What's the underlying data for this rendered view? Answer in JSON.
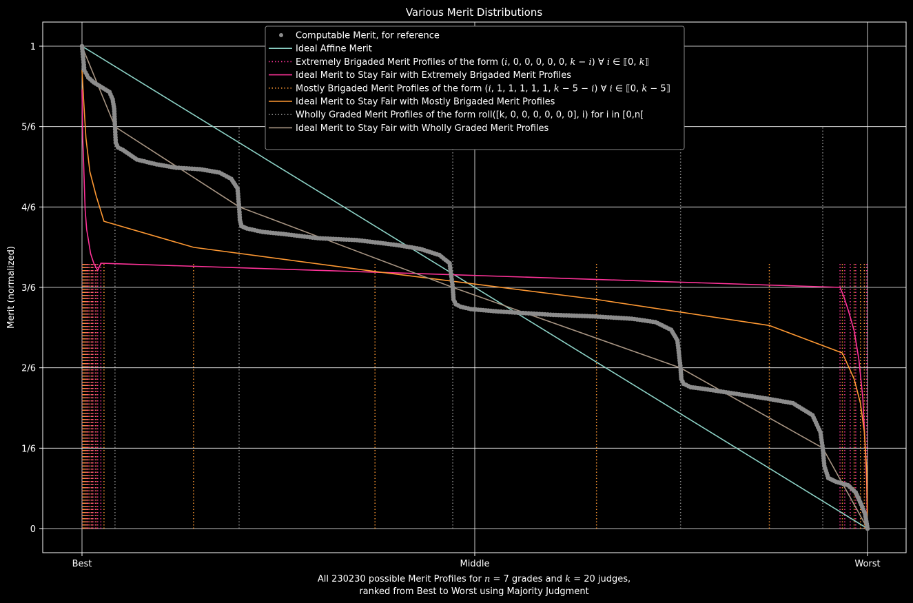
{
  "chart_data": {
    "type": "line",
    "title": "Various Merit Distributions",
    "xlabel": "All 230230 possible Merit Profiles for $n = 7$ grades and $k = 20$ judges,",
    "xlabel_line2": "ranked from Best to Worst using Majority Judgment",
    "ylabel": "Merit (normalized)",
    "xlim": [
      -0.05,
      1.05
    ],
    "ylim": [
      -0.05,
      1.05
    ],
    "x_ticks": [
      {
        "value": 0,
        "label": "Best"
      },
      {
        "value": 0.5,
        "label": "Middle"
      },
      {
        "value": 1,
        "label": "Worst"
      }
    ],
    "y_ticks": [
      {
        "value": 0,
        "label": "0"
      },
      {
        "value": 0.16667,
        "label": "1/6"
      },
      {
        "value": 0.33333,
        "label": "2/6"
      },
      {
        "value": 0.5,
        "label": "3/6"
      },
      {
        "value": 0.66667,
        "label": "4/6"
      },
      {
        "value": 0.83333,
        "label": "5/6"
      },
      {
        "value": 1,
        "label": "1"
      }
    ],
    "grid": true,
    "legend_position": "top-center",
    "legend": [
      {
        "label": "Computable Merit, for reference",
        "color": "#8c8c8c",
        "style": "dots"
      },
      {
        "label": "Ideal Affine Merit",
        "color": "#8dd3c7",
        "style": "solid"
      },
      {
        "label_parts": [
          "Extremely Brigaded Merit Profiles of the form (",
          "i",
          ", 0, 0, 0, 0, 0, ",
          "k",
          " − ",
          "i",
          ") ∀ ",
          "i",
          " ∈ ⟦0, ",
          "k",
          "⟧"
        ],
        "color": "#ff3399",
        "style": "dotted"
      },
      {
        "label": "Ideal Merit to Stay Fair with Extremely Brigaded Merit Profiles",
        "color": "#ff3399",
        "style": "solid"
      },
      {
        "label_parts": [
          "Mostly Brigaded Merit Profiles of the form (",
          "i",
          ", 1, 1, 1, 1, 1, ",
          "k",
          " − 5 − ",
          "i",
          ") ∀ ",
          "i",
          " ∈ ⟦0, ",
          "k",
          " − 5⟧"
        ],
        "color": "#ff9933",
        "style": "dotted"
      },
      {
        "label": "Ideal Merit to Stay Fair with Mostly Brigaded Merit Profiles",
        "color": "#ff9933",
        "style": "solid"
      },
      {
        "label": "Wholly Graded Merit Profiles of the form roll([k, 0, 0, 0, 0, 0, 0], i) for i in [0,n[",
        "color": "#8c8c8c",
        "style": "dotted"
      },
      {
        "label": "Ideal Merit to Stay Fair with Wholly Graded Merit Profiles",
        "color": "#a89583",
        "style": "solid"
      }
    ],
    "series": [
      {
        "name": "Ideal Affine Merit",
        "color": "#8dd3c7",
        "x": [
          0,
          1
        ],
        "y": [
          1,
          0
        ]
      },
      {
        "name": "Ideal Merit to Stay Fair with Extremely Brigaded Merit Profiles",
        "color": "#ff3399",
        "x": [
          0,
          0.0005,
          0.001,
          0.002,
          0.003,
          0.004,
          0.006,
          0.008,
          0.011,
          0.015,
          0.02,
          0.024,
          0.965,
          0.97,
          0.976,
          0.983,
          0.989,
          0.994,
          0.997,
          0.999,
          0.9995,
          1
        ],
        "y": [
          0.91,
          0.86,
          0.81,
          0.76,
          0.71,
          0.66,
          0.62,
          0.6,
          0.57,
          0.55,
          0.535,
          0.55,
          0.5,
          0.48,
          0.45,
          0.41,
          0.35,
          0.27,
          0.17,
          0.09,
          0.04,
          0
        ]
      },
      {
        "name": "Ideal Merit to Stay Fair with Mostly Brigaded Merit Profiles",
        "color": "#ff9933",
        "x": [
          0,
          0.002,
          0.005,
          0.01,
          0.018,
          0.028,
          0.142,
          0.373,
          0.655,
          0.875,
          0.968,
          0.983,
          0.991,
          0.996,
          0.999,
          1
        ],
        "y": [
          0.95,
          0.89,
          0.81,
          0.74,
          0.69,
          0.637,
          0.583,
          0.533,
          0.475,
          0.421,
          0.364,
          0.31,
          0.26,
          0.2,
          0.12,
          0
        ]
      },
      {
        "name": "Ideal Merit to Stay Fair with Wholly Graded Merit Profiles",
        "color": "#a89583",
        "x": [
          0,
          0.042,
          0.2,
          0.472,
          0.762,
          0.943,
          1
        ],
        "y": [
          1,
          0.833,
          0.667,
          0.5,
          0.333,
          0.167,
          0
        ]
      }
    ],
    "computable_merit": {
      "name": "Computable Merit, for reference",
      "color": "#8c8c8c",
      "x": [
        0,
        0.003,
        0.008,
        0.015,
        0.025,
        0.035,
        0.039,
        0.041,
        0.042,
        0.043,
        0.046,
        0.052,
        0.07,
        0.095,
        0.12,
        0.15,
        0.175,
        0.19,
        0.198,
        0.2,
        0.201,
        0.203,
        0.21,
        0.23,
        0.26,
        0.3,
        0.35,
        0.4,
        0.43,
        0.455,
        0.468,
        0.472,
        0.473,
        0.476,
        0.482,
        0.495,
        0.53,
        0.6,
        0.65,
        0.7,
        0.73,
        0.75,
        0.758,
        0.762,
        0.763,
        0.766,
        0.775,
        0.79,
        0.83,
        0.87,
        0.905,
        0.93,
        0.94,
        0.943,
        0.945,
        0.95,
        0.96,
        0.975,
        0.985,
        0.992,
        0.997,
        1
      ],
      "y": [
        1,
        0.95,
        0.935,
        0.925,
        0.915,
        0.905,
        0.89,
        0.87,
        0.833,
        0.8,
        0.79,
        0.785,
        0.765,
        0.755,
        0.748,
        0.745,
        0.738,
        0.725,
        0.705,
        0.667,
        0.64,
        0.627,
        0.622,
        0.615,
        0.61,
        0.602,
        0.598,
        0.588,
        0.58,
        0.567,
        0.55,
        0.5,
        0.475,
        0.465,
        0.46,
        0.455,
        0.45,
        0.443,
        0.44,
        0.435,
        0.428,
        0.412,
        0.39,
        0.333,
        0.31,
        0.3,
        0.293,
        0.29,
        0.28,
        0.27,
        0.26,
        0.235,
        0.2,
        0.167,
        0.13,
        0.105,
        0.097,
        0.09,
        0.075,
        0.05,
        0.03,
        0
      ]
    },
    "dotted_markers": [
      {
        "name": "Extremely Brigaded Merit Profiles",
        "color": "#ff3399",
        "x": [
          0.0005,
          0.001,
          0.0015,
          0.002,
          0.003,
          0.004,
          0.005,
          0.006,
          0.008,
          0.01,
          0.012,
          0.014,
          0.017,
          0.02,
          0.024,
          0.965,
          0.971,
          0.978,
          0.985,
          0.991,
          0.996,
          0.999
        ],
        "y_top": 0.55
      },
      {
        "name": "Mostly Brigaded Merit Profiles",
        "color": "#ff9933",
        "x": [
          0.001,
          0.002,
          0.003,
          0.005,
          0.007,
          0.01,
          0.013,
          0.018,
          0.028,
          0.142,
          0.373,
          0.655,
          0.875,
          0.968,
          0.983,
          0.991,
          0.996
        ],
        "y_top": 0.55
      },
      {
        "name": "Wholly Graded Merit Profiles",
        "color": "#8c8c8c",
        "x": [
          0.042,
          0.2,
          0.472,
          0.762,
          0.943
        ],
        "y_top": 0.833
      }
    ]
  }
}
